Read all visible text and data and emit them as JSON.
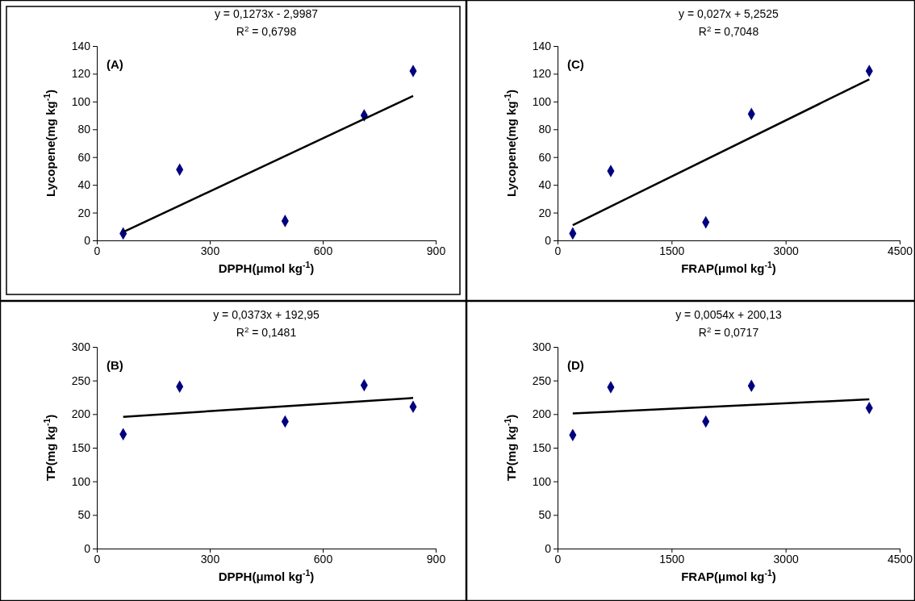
{
  "chart_data": [
    {
      "type": "scatter",
      "xlabel": "DPPH(μmol kg$^{-1}$)",
      "ylabel": "Lycopene(mg kg$^{-1}$)",
      "xlim": [
        0,
        900
      ],
      "xticks": [
        0,
        300,
        600,
        900
      ],
      "ylim": [
        0,
        140
      ],
      "yticks": [
        0,
        20,
        40,
        60,
        80,
        100,
        120,
        140
      ],
      "grid": false,
      "annotations": [
        "(A)",
        "y = 0,1273x - 2,9987",
        "R$^{2}$ = 0,6798"
      ],
      "series": [
        {
          "color": "#000080",
          "marker": "diamond",
          "x": [
            70,
            220,
            500,
            710,
            840
          ],
          "values": [
            5,
            51,
            14,
            90,
            122
          ]
        },
        {
          "type": "line",
          "color": "#000000",
          "line_style": "solid",
          "x": [
            70,
            840
          ],
          "values": [
            6,
            104
          ]
        }
      ]
    },
    {
      "type": "scatter",
      "xlabel": "FRAP(μmol kg$^{-1}$)",
      "ylabel": "Lycopene(mg kg$^{-1}$)",
      "xlim": [
        0,
        4500
      ],
      "xticks": [
        0,
        1500,
        3000,
        4500
      ],
      "ylim": [
        0,
        140
      ],
      "yticks": [
        0,
        20,
        40,
        60,
        80,
        100,
        120,
        140
      ],
      "grid": false,
      "annotations": [
        "(C)",
        "y = 0,027x + 5,2525",
        "R$^{2}$ = 0,7048"
      ],
      "series": [
        {
          "color": "#000080",
          "marker": "diamond",
          "x": [
            200,
            700,
            1950,
            2550,
            4100
          ],
          "values": [
            5,
            50,
            13,
            91,
            122
          ]
        },
        {
          "type": "line",
          "color": "#000000",
          "line_style": "solid",
          "x": [
            200,
            4100
          ],
          "values": [
            11,
            116
          ]
        }
      ]
    },
    {
      "type": "scatter",
      "xlabel": "DPPH(μmol kg$^{-1}$)",
      "ylabel": "TP(mg kg$^{-1}$)",
      "xlim": [
        0,
        900
      ],
      "xticks": [
        0,
        300,
        600,
        900
      ],
      "ylim": [
        0,
        300
      ],
      "yticks": [
        0,
        50,
        100,
        150,
        200,
        250,
        300
      ],
      "grid": false,
      "annotations": [
        "(B)",
        "y = 0,0373x + 192,95",
        "R$^{2}$ = 0,1481"
      ],
      "series": [
        {
          "color": "#000080",
          "marker": "diamond",
          "x": [
            70,
            220,
            500,
            710,
            840
          ],
          "values": [
            170,
            241,
            189,
            243,
            211
          ]
        },
        {
          "type": "line",
          "color": "#000000",
          "line_style": "solid",
          "x": [
            70,
            840
          ],
          "values": [
            196,
            224
          ]
        }
      ]
    },
    {
      "type": "scatter",
      "xlabel": "FRAP(μmol kg$^{-1}$)",
      "ylabel": "TP(mg kg$^{-1}$)",
      "xlim": [
        0,
        4500
      ],
      "xticks": [
        0,
        1500,
        3000,
        4500
      ],
      "ylim": [
        0,
        300
      ],
      "yticks": [
        0,
        50,
        100,
        150,
        200,
        250,
        300
      ],
      "grid": false,
      "annotations": [
        "(D)",
        "y = 0,0054x + 200,13",
        "R$^{2}$ = 0,0717"
      ],
      "series": [
        {
          "color": "#000080",
          "marker": "diamond",
          "x": [
            200,
            700,
            1950,
            2550,
            4100
          ],
          "values": [
            169,
            240,
            189,
            242,
            209
          ]
        },
        {
          "type": "line",
          "color": "#000000",
          "line_style": "solid",
          "x": [
            200,
            4100
          ],
          "values": [
            201,
            222
          ]
        }
      ]
    }
  ]
}
